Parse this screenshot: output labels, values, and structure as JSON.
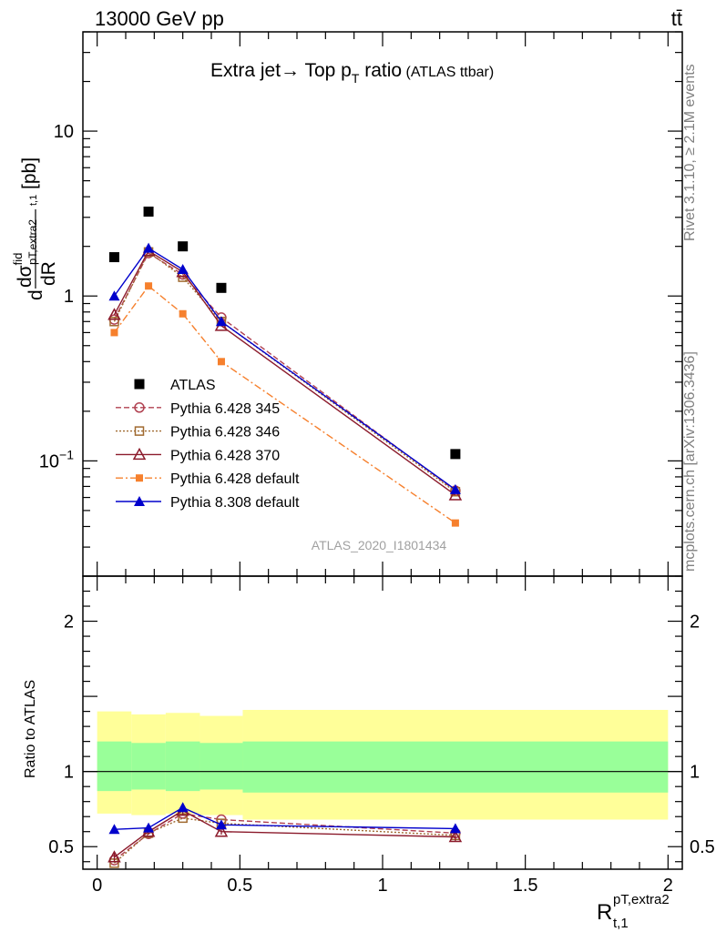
{
  "header": {
    "energy": "13000 GeV pp",
    "process": "tt̄"
  },
  "side_labels": {
    "rivet": "Rivet 3.1.10, ≥ 2.1M events",
    "mcplots": "mcplots.cern.ch [arXiv:1306.3436]"
  },
  "main_title": {
    "text": "Extra jet→ Top p",
    "sub": "T",
    "after": " ratio",
    "note": " (ATLAS ttbar)"
  },
  "analysis_label": "ATLAS_2020_I1801434",
  "y_axis_label": {
    "d1": "d",
    "sigma": "dσ",
    "fid": "fid",
    "sub": "p",
    "sub2": "T,extra2",
    "sub3": "t,1",
    "dR": "dR",
    "unit": "[pb]"
  },
  "ratio_axis_label": "Ratio to ATLAS",
  "x_axis_label": {
    "base": "R",
    "sup": "pT,extra2",
    "sub": "t,1"
  },
  "colors": {
    "atlas": "#000000",
    "p345": "#b04050",
    "p346": "#a06a30",
    "p370": "#8b1a2b",
    "p6def": "#f6802d",
    "p8def": "#0000cc",
    "band_outer": "#ffff99",
    "band_inner": "#99ff99"
  },
  "chart_data": {
    "type": "line",
    "x_range": [
      -0.05,
      2.05
    ],
    "main": {
      "y_scale": "log",
      "y_range": [
        0.02,
        40
      ],
      "yticks": [
        {
          "v": 0.1,
          "base": "10",
          "exp": "−1"
        },
        {
          "v": 1,
          "label": "1"
        },
        {
          "v": 10,
          "label": "10"
        }
      ]
    },
    "ratio": {
      "y_range": [
        0.35,
        2.3
      ],
      "yticks": [
        0.5,
        1,
        2
      ]
    },
    "xticks": [
      0,
      0.5,
      1,
      1.5,
      2
    ],
    "xtick_labels": [
      "0",
      "0.5",
      "1",
      "1.5",
      "2"
    ],
    "bins": [
      {
        "lo": 0.0,
        "hi": 0.12
      },
      {
        "lo": 0.12,
        "hi": 0.24
      },
      {
        "lo": 0.24,
        "hi": 0.36
      },
      {
        "lo": 0.36,
        "hi": 0.51
      },
      {
        "lo": 0.51,
        "hi": 2.0
      }
    ],
    "band": {
      "outer": [
        [
          0.72,
          1.4
        ],
        [
          0.71,
          1.38
        ],
        [
          0.72,
          1.39
        ],
        [
          0.71,
          1.37
        ],
        [
          0.68,
          1.41
        ]
      ],
      "inner": [
        [
          0.87,
          1.2
        ],
        [
          0.88,
          1.19
        ],
        [
          0.87,
          1.2
        ],
        [
          0.88,
          1.19
        ],
        [
          0.86,
          1.2
        ]
      ]
    },
    "atlas": {
      "name": "ATLAS",
      "x": [
        0.06,
        0.18,
        0.3,
        0.435,
        1.255
      ],
      "y": [
        1.72,
        3.25,
        2.0,
        1.12,
        0.11
      ]
    },
    "series": [
      {
        "name": "Pythia 6.428 345",
        "key": "p345",
        "marker": "circle-open",
        "dash": "6,3",
        "x": [
          0.06,
          0.18,
          0.3,
          0.435,
          1.255
        ],
        "y": [
          0.72,
          1.82,
          1.35,
          0.74,
          0.066
        ],
        "ratio": [
          0.41,
          0.585,
          0.72,
          0.68,
          0.59
        ]
      },
      {
        "name": "Pythia 6.428 346",
        "key": "p346",
        "marker": "square-open",
        "dash": "2,2",
        "x": [
          0.06,
          0.18,
          0.3,
          0.435,
          1.255
        ],
        "y": [
          0.7,
          1.85,
          1.3,
          0.7,
          0.065
        ],
        "ratio": [
          0.39,
          0.59,
          0.69,
          0.655,
          0.575
        ]
      },
      {
        "name": "Pythia 6.428 370",
        "key": "p370",
        "marker": "triangle-open",
        "dash": "",
        "x": [
          0.06,
          0.18,
          0.3,
          0.435,
          1.255
        ],
        "y": [
          0.77,
          1.88,
          1.4,
          0.66,
          0.062
        ],
        "ratio": [
          0.43,
          0.6,
          0.74,
          0.6,
          0.565
        ],
        "ratio_err": [
          0.03,
          0.02,
          0.03,
          0.02,
          0.03
        ]
      },
      {
        "name": "Pythia 6.428 default",
        "key": "p6def",
        "marker": "square-filled",
        "dash": "8,3,2,3",
        "x": [
          0.06,
          0.18,
          0.3,
          0.435,
          1.255
        ],
        "y": [
          0.6,
          1.15,
          0.78,
          0.4,
          0.042
        ],
        "ratio": [],
        "ratio_err": []
      },
      {
        "name": "Pythia 8.308 default",
        "key": "p8def",
        "marker": "triangle-filled",
        "dash": "",
        "x": [
          0.06,
          0.18,
          0.3,
          0.435,
          1.255
        ],
        "y": [
          1.0,
          1.95,
          1.45,
          0.7,
          0.067
        ],
        "ratio": [
          0.615,
          0.625,
          0.76,
          0.645,
          0.62
        ],
        "ratio_err": [
          0.025,
          0.02,
          0.03,
          0.02,
          0.03
        ]
      }
    ]
  }
}
